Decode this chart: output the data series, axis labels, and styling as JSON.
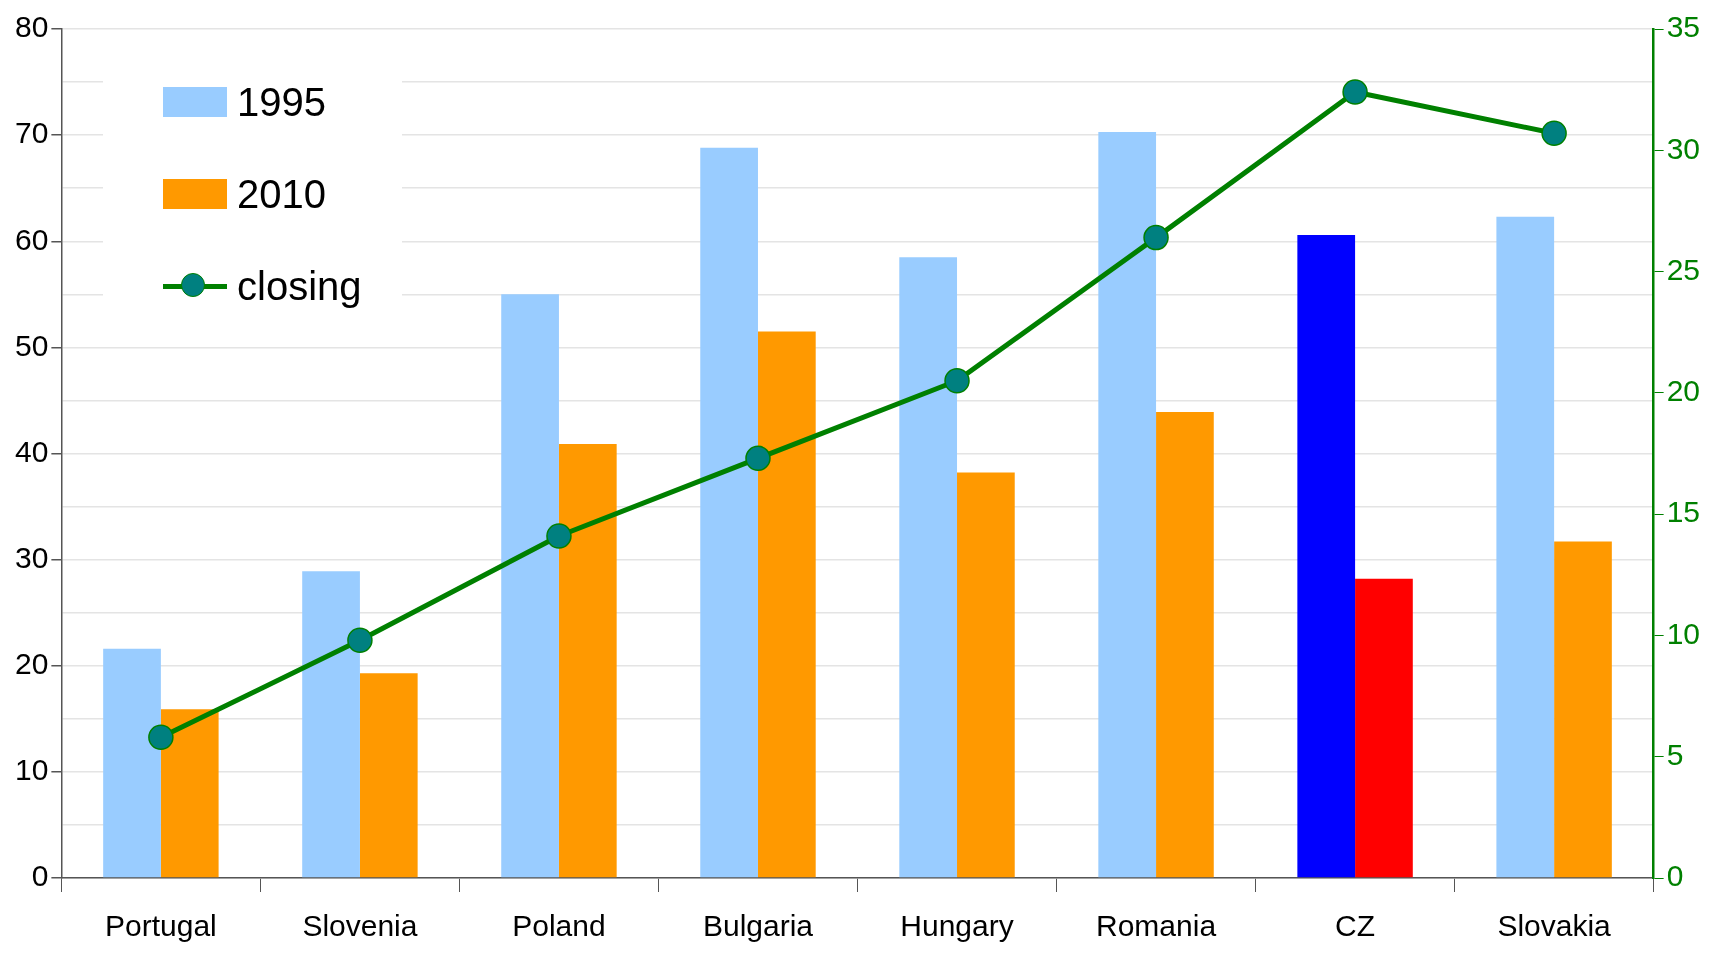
{
  "chart_data": {
    "type": "bar",
    "categories": [
      "Portugal",
      "Slovenia",
      "Poland",
      "Bulgaria",
      "Hungary",
      "Romania",
      "CZ",
      "Slovakia"
    ],
    "series": [
      {
        "name": "1995",
        "color": "#99ccff",
        "colors": [
          "#99ccff",
          "#99ccff",
          "#99ccff",
          "#99ccff",
          "#99ccff",
          "#99ccff",
          "#0000ff",
          "#99ccff"
        ],
        "values": [
          21.6,
          28.9,
          55.0,
          68.8,
          58.5,
          70.3,
          60.6,
          62.3
        ]
      },
      {
        "name": "2010",
        "color": "#ff9900",
        "colors": [
          "#ff9900",
          "#ff9900",
          "#ff9900",
          "#ff9900",
          "#ff9900",
          "#ff9900",
          "#ff0000",
          "#ff9900"
        ],
        "values": [
          15.9,
          19.3,
          40.9,
          51.5,
          38.2,
          43.9,
          28.2,
          31.7
        ]
      },
      {
        "name": "closing",
        "type": "line",
        "axis": "y2",
        "color": "#008000",
        "colors": [
          "#008080",
          "#008080",
          "#008080",
          "#008080",
          "#008080",
          "#008080",
          "#008080",
          "#008080"
        ],
        "values": [
          5.8,
          9.8,
          14.1,
          17.3,
          20.5,
          26.4,
          32.4,
          30.7
        ]
      }
    ],
    "ylim": [
      0,
      80
    ],
    "yticks": [
      0,
      {
        "value": 5,
        "label": null
      },
      10,
      {
        "value": 15,
        "label": null
      },
      20,
      {
        "value": 25,
        "label": null
      },
      30,
      {
        "value": 35,
        "label": null
      },
      40,
      {
        "value": 45,
        "label": null
      },
      50,
      {
        "value": 55,
        "label": null
      },
      60,
      {
        "value": 65,
        "label": null
      },
      70,
      {
        "value": 75,
        "label": null
      },
      80
    ],
    "y2lim": [
      0,
      35
    ],
    "y2ticks": [
      0,
      5,
      10,
      15,
      20,
      25,
      30,
      35
    ],
    "grid": "y",
    "legend": "top left",
    "marker": "circle",
    "line_style": "solid"
  }
}
